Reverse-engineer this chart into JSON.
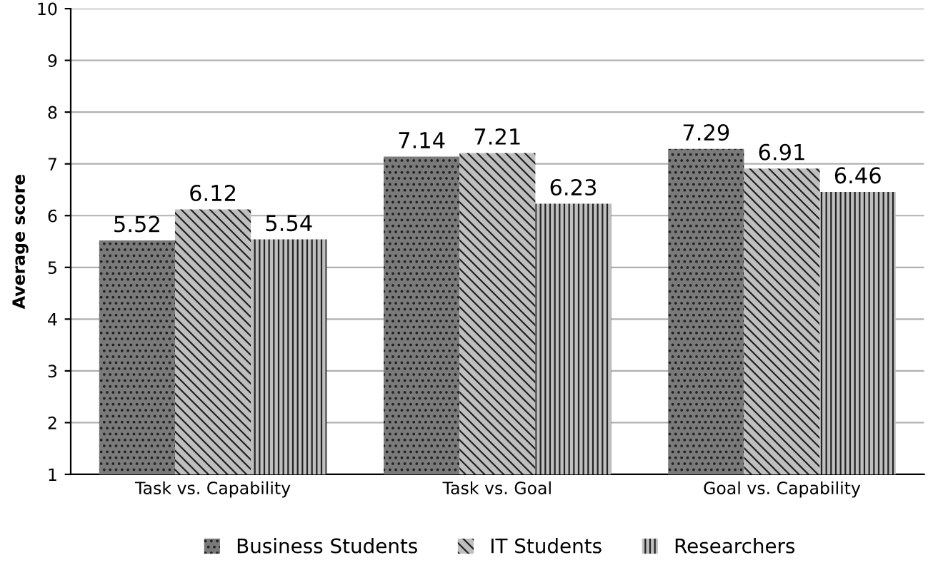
{
  "chart_data": {
    "type": "bar",
    "ylabel": "Average score",
    "categories": [
      "Task vs. Capability",
      "Task vs. Goal",
      "Goal vs. Capability"
    ],
    "series": [
      {
        "name": "Business Students",
        "color": "#7a7a7a",
        "values": [
          5.52,
          7.14,
          7.29
        ]
      },
      {
        "name": "IT Students",
        "color": "#bfbfbf",
        "values": [
          6.12,
          7.21,
          6.91
        ]
      },
      {
        "name": "Researchers",
        "color": "#bfbfbf",
        "values": [
          5.54,
          6.23,
          6.46
        ]
      }
    ],
    "ylim": [
      1,
      10
    ],
    "yticks": [
      1,
      2,
      3,
      4,
      5,
      6,
      7,
      8,
      9,
      10
    ],
    "grid": "y",
    "legend": "bottom",
    "data_labels": true
  }
}
